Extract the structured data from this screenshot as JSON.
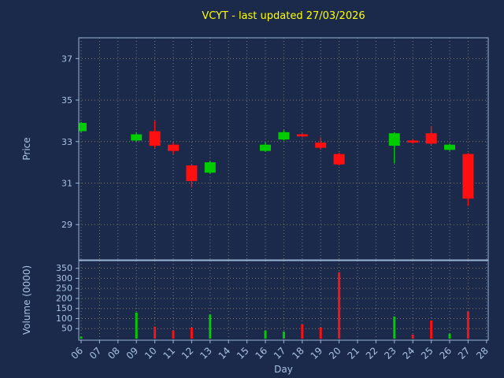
{
  "title": "VCYT - last updated 27/03/2026",
  "colors": {
    "background": "#1b2a4a",
    "title": "#ffff00",
    "axis_text": "#a9c2e2",
    "grid": "#8a8a8a",
    "spine": "#9ab4d6",
    "up": "#00cc00",
    "down": "#ff1010"
  },
  "chart_data": {
    "type": "candlestick",
    "xlabel": "Day",
    "grid": true,
    "days": [
      "06",
      "07",
      "08",
      "09",
      "10",
      "11",
      "12",
      "13",
      "14",
      "15",
      "16",
      "17",
      "18",
      "19",
      "20",
      "21",
      "22",
      "23",
      "24",
      "25",
      "26",
      "27",
      "28"
    ],
    "price_axis": {
      "label": "Price",
      "ticks": [
        29,
        31,
        33,
        35,
        37
      ],
      "ylim": [
        27.3,
        38.0
      ]
    },
    "volume_axis": {
      "label": "Volume (0000)",
      "ticks": [
        50,
        100,
        150,
        200,
        250,
        300,
        350
      ],
      "ylim": [
        0,
        380
      ]
    },
    "colors": {
      "up": "#00cc00",
      "down": "#ff1010"
    },
    "candles": [
      {
        "day": "06",
        "open": 33.5,
        "high": 33.95,
        "low": 33.45,
        "close": 33.9,
        "volume": 10
      },
      {
        "day": "09",
        "open": 33.05,
        "high": 33.45,
        "low": 33.0,
        "close": 33.35,
        "volume": 130
      },
      {
        "day": "10",
        "open": 33.5,
        "high": 34.0,
        "low": 32.7,
        "close": 32.8,
        "volume": 60
      },
      {
        "day": "11",
        "open": 32.85,
        "high": 32.95,
        "low": 32.4,
        "close": 32.55,
        "volume": 40
      },
      {
        "day": "12",
        "open": 31.85,
        "high": 31.9,
        "low": 30.8,
        "close": 31.1,
        "volume": 55
      },
      {
        "day": "13",
        "open": 31.5,
        "high": 32.05,
        "low": 31.45,
        "close": 32.0,
        "volume": 120
      },
      {
        "day": "16",
        "open": 32.55,
        "high": 32.95,
        "low": 32.5,
        "close": 32.85,
        "volume": 40
      },
      {
        "day": "17",
        "open": 33.1,
        "high": 33.55,
        "low": 33.05,
        "close": 33.45,
        "volume": 35
      },
      {
        "day": "18",
        "open": 33.35,
        "high": 33.4,
        "low": 33.2,
        "close": 33.25,
        "volume": 70
      },
      {
        "day": "19",
        "open": 32.95,
        "high": 33.2,
        "low": 32.6,
        "close": 32.7,
        "volume": 55
      },
      {
        "day": "20",
        "open": 32.4,
        "high": 32.45,
        "low": 31.85,
        "close": 31.9,
        "volume": 330
      },
      {
        "day": "23",
        "open": 32.8,
        "high": 33.45,
        "low": 31.95,
        "close": 33.4,
        "volume": 110
      },
      {
        "day": "24",
        "open": 33.05,
        "high": 33.1,
        "low": 32.9,
        "close": 32.95,
        "volume": 20
      },
      {
        "day": "25",
        "open": 33.4,
        "high": 33.75,
        "low": 32.85,
        "close": 32.9,
        "volume": 90
      },
      {
        "day": "26",
        "open": 32.6,
        "high": 32.9,
        "low": 32.55,
        "close": 32.85,
        "volume": 25
      },
      {
        "day": "27",
        "open": 32.4,
        "high": 32.45,
        "low": 29.9,
        "close": 30.25,
        "volume": 135
      }
    ]
  }
}
